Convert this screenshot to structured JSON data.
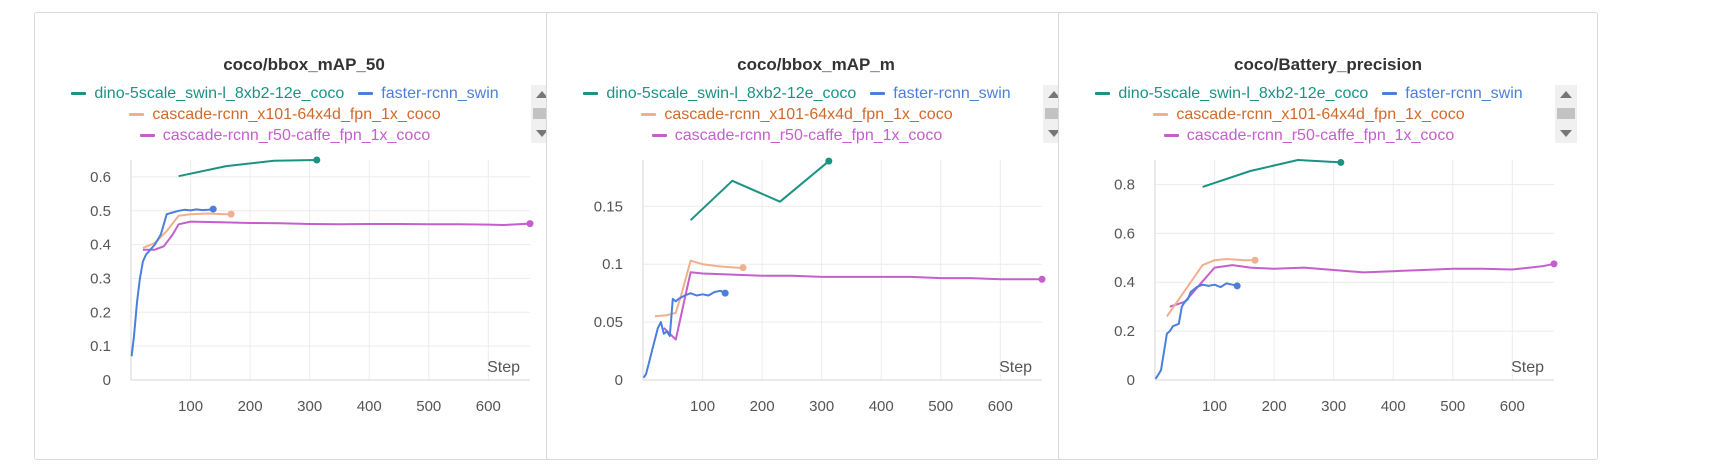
{
  "colors": {
    "dino": "#1a9383",
    "faster": "#4a7fdc",
    "cascade_x101": "#f0b08d",
    "cascade_r50": "#c45fcc"
  },
  "legend": {
    "dino": "dino-5scale_swin-l_8xb2-12e_coco",
    "faster": "faster-rcnn_swin",
    "cascade_x101": "cascade-rcnn_x101-64x4d_fpn_1x_coco",
    "cascade_r50": "cascade-rcnn_r50-caffe_fpn_1x_coco"
  },
  "legend_text_colors": {
    "dino": "#1a9383",
    "faster": "#4a7fdc",
    "cascade_x101": "#d06a2c",
    "cascade_r50": "#c45fcc"
  },
  "chart_data": [
    {
      "type": "line",
      "title": "coco/bbox_mAP_50",
      "xlabel": "Step",
      "ylabel": "",
      "xlim": [
        0,
        670
      ],
      "ylim": [
        0,
        0.65
      ],
      "x_ticks": [
        100,
        200,
        300,
        400,
        500,
        600
      ],
      "y_ticks": [
        0,
        0.1,
        0.2,
        0.3,
        0.4,
        0.5,
        0.6
      ],
      "y_tick_labels": [
        "0",
        "0.1",
        "0.2",
        "0.3",
        "0.4",
        "0.5",
        "0.6"
      ],
      "grid": true,
      "legend_position": "top",
      "series": [
        {
          "name": "dino-5scale_swin-l_8xb2-12e_coco",
          "key": "dino",
          "x": [
            80,
            160,
            240,
            312
          ],
          "y": [
            0.602,
            0.632,
            0.648,
            0.65
          ]
        },
        {
          "name": "faster-rcnn_swin",
          "key": "faster",
          "x": [
            1,
            5,
            10,
            15,
            20,
            25,
            30,
            35,
            40,
            50,
            55,
            60,
            70,
            80,
            90,
            100,
            110,
            120,
            130,
            138
          ],
          "y": [
            0.07,
            0.13,
            0.23,
            0.3,
            0.35,
            0.37,
            0.38,
            0.39,
            0.4,
            0.43,
            0.46,
            0.49,
            0.495,
            0.5,
            0.503,
            0.501,
            0.504,
            0.502,
            0.503,
            0.505
          ]
        },
        {
          "name": "cascade-rcnn_x101-64x4d_fpn_1x_coco",
          "key": "cascade_x101",
          "x": [
            20,
            40,
            60,
            80,
            100,
            130,
            160,
            168
          ],
          "y": [
            0.39,
            0.405,
            0.44,
            0.485,
            0.49,
            0.492,
            0.49,
            0.49
          ]
        },
        {
          "name": "cascade-rcnn_r50-caffe_fpn_1x_coco",
          "key": "cascade_r50",
          "x": [
            20,
            40,
            55,
            70,
            80,
            100,
            150,
            200,
            250,
            300,
            350,
            400,
            450,
            500,
            550,
            600,
            625,
            650,
            670
          ],
          "y": [
            0.385,
            0.385,
            0.395,
            0.43,
            0.46,
            0.468,
            0.466,
            0.464,
            0.463,
            0.461,
            0.46,
            0.461,
            0.461,
            0.46,
            0.46,
            0.459,
            0.458,
            0.46,
            0.462
          ]
        }
      ]
    },
    {
      "type": "line",
      "title": "coco/bbox_mAP_m",
      "xlabel": "Step",
      "ylabel": "",
      "xlim": [
        0,
        670
      ],
      "ylim": [
        0,
        0.19
      ],
      "x_ticks": [
        100,
        200,
        300,
        400,
        500,
        600
      ],
      "y_ticks": [
        0,
        0.05,
        0.1,
        0.15
      ],
      "y_tick_labels": [
        "0",
        "0.05",
        "0.1",
        "0.15"
      ],
      "grid": true,
      "legend_position": "top",
      "series": [
        {
          "name": "dino-5scale_swin-l_8xb2-12e_coco",
          "key": "dino",
          "x": [
            80,
            150,
            230,
            312
          ],
          "y": [
            0.138,
            0.172,
            0.154,
            0.189
          ]
        },
        {
          "name": "faster-rcnn_swin",
          "key": "faster",
          "x": [
            1,
            5,
            10,
            15,
            20,
            25,
            30,
            35,
            40,
            45,
            50,
            55,
            60,
            70,
            80,
            90,
            100,
            110,
            120,
            130,
            138
          ],
          "y": [
            0.002,
            0.005,
            0.015,
            0.025,
            0.035,
            0.045,
            0.05,
            0.04,
            0.042,
            0.038,
            0.07,
            0.068,
            0.07,
            0.073,
            0.075,
            0.073,
            0.074,
            0.073,
            0.076,
            0.077,
            0.075
          ]
        },
        {
          "name": "cascade-rcnn_x101-64x4d_fpn_1x_coco",
          "key": "cascade_x101",
          "x": [
            20,
            40,
            55,
            65,
            80,
            100,
            130,
            160,
            168
          ],
          "y": [
            0.055,
            0.056,
            0.058,
            0.075,
            0.103,
            0.1,
            0.098,
            0.097,
            0.097
          ]
        },
        {
          "name": "cascade-rcnn_r50-caffe_fpn_1x_coco",
          "key": "cascade_r50",
          "x": [
            35,
            45,
            55,
            70,
            80,
            100,
            150,
            200,
            250,
            300,
            350,
            400,
            450,
            500,
            550,
            600,
            650,
            670
          ],
          "y": [
            0.045,
            0.04,
            0.035,
            0.07,
            0.093,
            0.092,
            0.091,
            0.09,
            0.09,
            0.089,
            0.089,
            0.089,
            0.089,
            0.088,
            0.088,
            0.087,
            0.087,
            0.087
          ]
        }
      ]
    },
    {
      "type": "line",
      "title": "coco/Battery_precision",
      "xlabel": "Step",
      "ylabel": "",
      "xlim": [
        0,
        670
      ],
      "ylim": [
        0,
        0.9
      ],
      "x_ticks": [
        100,
        200,
        300,
        400,
        500,
        600
      ],
      "y_ticks": [
        0,
        0.2,
        0.4,
        0.6,
        0.8
      ],
      "y_tick_labels": [
        "0",
        "0.2",
        "0.4",
        "0.6",
        "0.8"
      ],
      "grid": true,
      "legend_position": "top",
      "series": [
        {
          "name": "dino-5scale_swin-l_8xb2-12e_coco",
          "key": "dino",
          "x": [
            80,
            160,
            240,
            312
          ],
          "y": [
            0.79,
            0.855,
            0.9,
            0.89
          ]
        },
        {
          "name": "faster-rcnn_swin",
          "key": "faster",
          "x": [
            1,
            5,
            10,
            20,
            25,
            30,
            40,
            45,
            50,
            55,
            60,
            70,
            80,
            90,
            100,
            110,
            120,
            130,
            138
          ],
          "y": [
            0.005,
            0.02,
            0.04,
            0.19,
            0.2,
            0.22,
            0.23,
            0.3,
            0.32,
            0.33,
            0.36,
            0.38,
            0.39,
            0.385,
            0.39,
            0.38,
            0.395,
            0.39,
            0.385
          ]
        },
        {
          "name": "cascade-rcnn_x101-64x4d_fpn_1x_coco",
          "key": "cascade_x101",
          "x": [
            20,
            40,
            60,
            80,
            100,
            120,
            150,
            168
          ],
          "y": [
            0.26,
            0.33,
            0.4,
            0.47,
            0.49,
            0.495,
            0.49,
            0.49
          ]
        },
        {
          "name": "cascade-rcnn_r50-caffe_fpn_1x_coco",
          "key": "cascade_r50",
          "x": [
            25,
            50,
            75,
            100,
            130,
            160,
            200,
            250,
            300,
            350,
            400,
            450,
            500,
            550,
            600,
            650,
            670
          ],
          "y": [
            0.3,
            0.32,
            0.39,
            0.46,
            0.47,
            0.46,
            0.455,
            0.46,
            0.45,
            0.44,
            0.445,
            0.45,
            0.455,
            0.455,
            0.452,
            0.465,
            0.475
          ]
        }
      ]
    }
  ]
}
